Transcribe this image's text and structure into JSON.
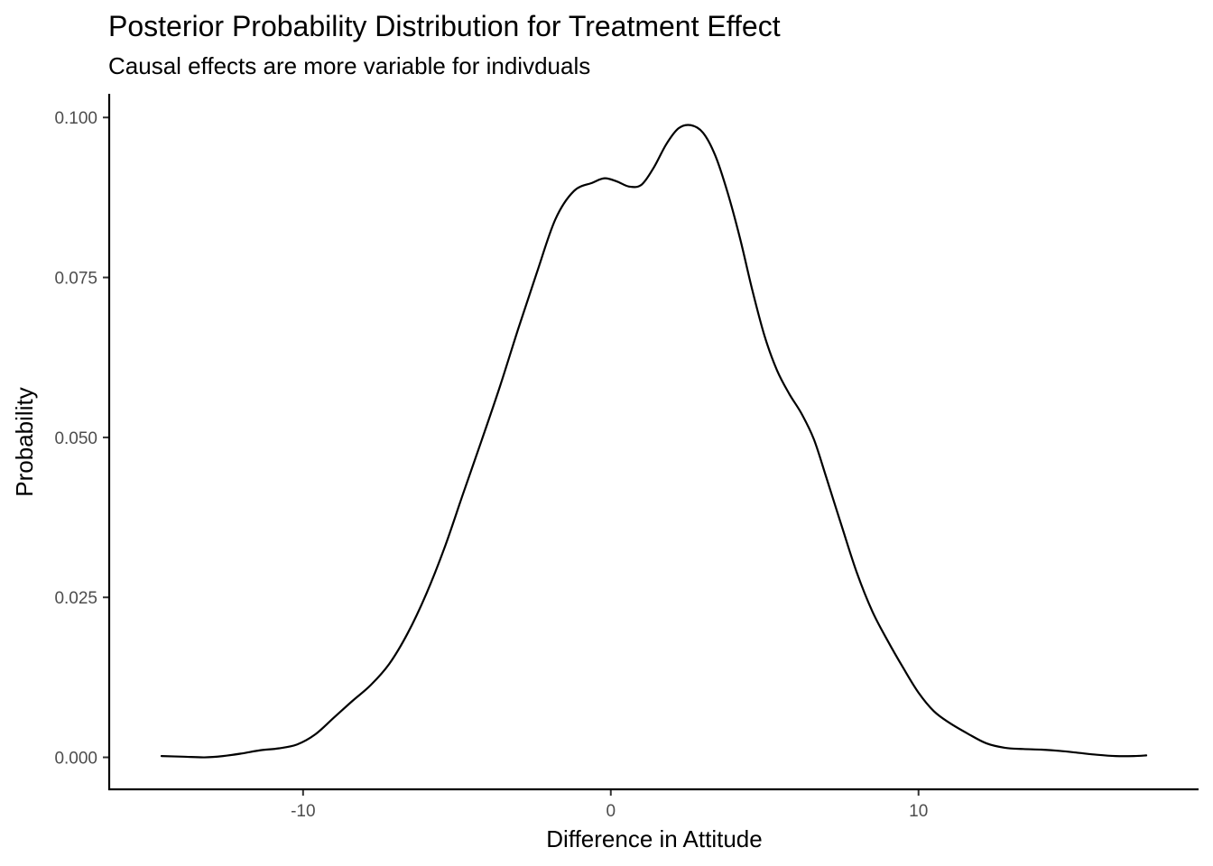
{
  "chart_data": {
    "type": "line",
    "title": "Posterior Probability Distribution for Treatment Effect",
    "subtitle": "Causal effects are more variable for indivduals",
    "xlabel": "Difference in Attitude",
    "ylabel": "Probability",
    "xlim": [
      -16.3,
      19.1
    ],
    "ylim": [
      -0.005,
      0.1037
    ],
    "x_ticks": [
      -10,
      0,
      10
    ],
    "x_tick_labels": [
      "-10",
      "0",
      "10"
    ],
    "y_ticks": [
      0.0,
      0.025,
      0.05,
      0.075,
      0.1
    ],
    "y_tick_labels": [
      "0.000",
      "0.025",
      "0.050",
      "0.075",
      "0.100"
    ],
    "grid": false,
    "legend": "none",
    "line_color": "#000000",
    "series": [
      {
        "x": [
          -14.6,
          -13.9,
          -13.2,
          -12.6,
          -12.0,
          -11.4,
          -10.8,
          -10.2,
          -9.6,
          -9.0,
          -8.4,
          -7.8,
          -7.2,
          -6.6,
          -6.0,
          -5.4,
          -4.8,
          -4.2,
          -3.6,
          -3.0,
          -2.4,
          -1.8,
          -1.2,
          -0.6,
          -0.2,
          0.2,
          0.6,
          1.0,
          1.4,
          1.8,
          2.2,
          2.6,
          3.0,
          3.4,
          3.8,
          4.2,
          4.6,
          5.0,
          5.4,
          5.8,
          6.2,
          6.6,
          7.0,
          7.5,
          8.0,
          8.5,
          9.0,
          9.5,
          10.0,
          10.5,
          11.0,
          11.6,
          12.2,
          12.8,
          13.4,
          14.0,
          14.6,
          15.2,
          15.8,
          16.4,
          17.0,
          17.4
        ],
        "y": [
          0.0002,
          0.0001,
          0.0,
          0.0002,
          0.0006,
          0.0011,
          0.0014,
          0.002,
          0.0036,
          0.0062,
          0.0088,
          0.0113,
          0.0146,
          0.0194,
          0.0255,
          0.0328,
          0.0412,
          0.0495,
          0.058,
          0.0671,
          0.0758,
          0.0841,
          0.0885,
          0.0898,
          0.0905,
          0.09,
          0.0892,
          0.0895,
          0.0922,
          0.0958,
          0.0983,
          0.0988,
          0.0976,
          0.094,
          0.0882,
          0.0811,
          0.073,
          0.0658,
          0.0605,
          0.0568,
          0.0537,
          0.0497,
          0.0438,
          0.0362,
          0.0288,
          0.0228,
          0.0182,
          0.014,
          0.0101,
          0.0072,
          0.0054,
          0.0037,
          0.0022,
          0.0015,
          0.0013,
          0.0012,
          0.001,
          0.0007,
          0.0004,
          0.0002,
          0.0002,
          0.0003
        ]
      }
    ]
  }
}
